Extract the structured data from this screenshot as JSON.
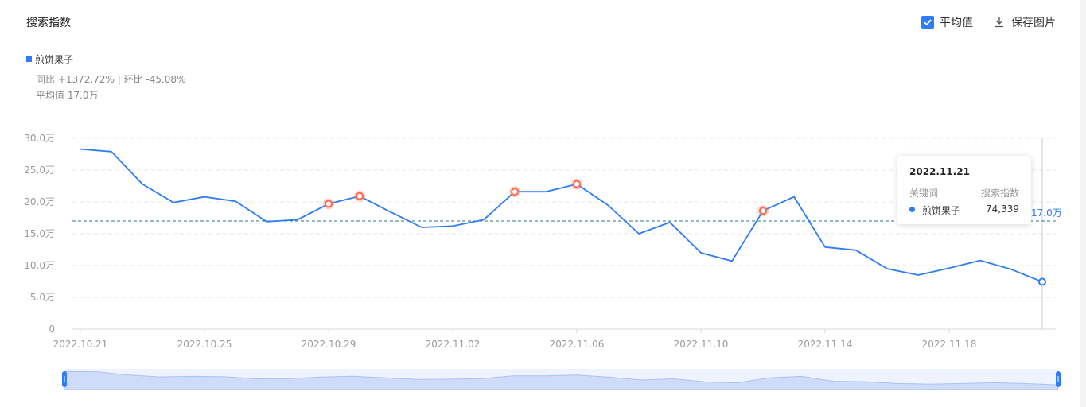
{
  "header": {
    "title": "搜索指数",
    "avg_toggle_label": "平均值",
    "save_label": "保存图片"
  },
  "legend": {
    "series_name": "煎饼果子"
  },
  "stats": {
    "yoy_mom": "同比 +1372.72% | 环比 -45.08%",
    "average": "平均值 17.0万"
  },
  "tooltip": {
    "date": "2022.11.21",
    "col_keyword": "关键词",
    "col_index": "搜索指数",
    "keyword": "煎饼果子",
    "value": "74,339"
  },
  "avg_line_label": "17.0万",
  "colors": {
    "series": "#2e7cf6",
    "highlight": "#ff6a4d",
    "avg_line": "#2b7a78"
  },
  "chart_data": {
    "type": "line",
    "x": [
      "2022.10.21",
      "2022.10.22",
      "2022.10.23",
      "2022.10.24",
      "2022.10.25",
      "2022.10.26",
      "2022.10.27",
      "2022.10.28",
      "2022.10.29",
      "2022.10.30",
      "2022.10.31",
      "2022.11.01",
      "2022.11.02",
      "2022.11.03",
      "2022.11.04",
      "2022.11.05",
      "2022.11.06",
      "2022.11.07",
      "2022.11.08",
      "2022.11.09",
      "2022.11.10",
      "2022.11.11",
      "2022.11.12",
      "2022.11.13",
      "2022.11.14",
      "2022.11.15",
      "2022.11.16",
      "2022.11.17",
      "2022.11.18",
      "2022.11.19",
      "2022.11.20",
      "2022.11.21"
    ],
    "x_ticks": [
      "2022.10.21",
      "2022.10.25",
      "2022.10.29",
      "2022.11.02",
      "2022.11.06",
      "2022.11.10",
      "2022.11.14",
      "2022.11.18"
    ],
    "series": [
      {
        "name": "煎饼果子",
        "values": [
          283000,
          279000,
          228000,
          199000,
          208000,
          201000,
          169000,
          172000,
          197000,
          209000,
          184000,
          160000,
          162000,
          172000,
          216000,
          216000,
          228000,
          195000,
          150000,
          168000,
          120000,
          107000,
          186000,
          208000,
          129000,
          124000,
          95000,
          85000,
          96000,
          108000,
          94000,
          74339
        ]
      }
    ],
    "highlights": [
      8,
      9,
      14,
      16,
      22
    ],
    "y_ticks": [
      "0",
      "5.0万",
      "10.0万",
      "15.0万",
      "20.0万",
      "25.0万",
      "30.0万"
    ],
    "ylim": [
      0,
      300000
    ],
    "average": 170000,
    "grid": true
  }
}
